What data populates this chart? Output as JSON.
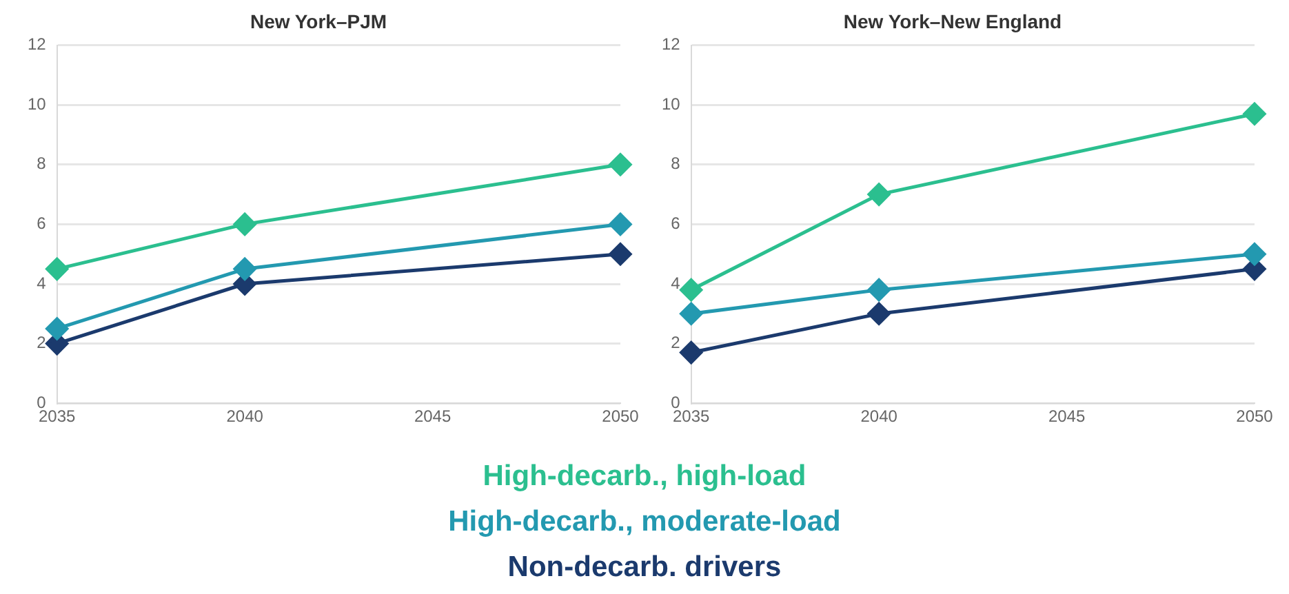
{
  "chart_data": [
    {
      "type": "line",
      "title": "New York–PJM",
      "x": [
        2035,
        2040,
        2050
      ],
      "xlim": [
        2035,
        2050
      ],
      "xticks": [
        2035,
        2040,
        2045,
        2050
      ],
      "ylim": [
        0,
        12
      ],
      "yticks": [
        0,
        2,
        4,
        6,
        8,
        10,
        12
      ],
      "grid": "y",
      "marker": "diamond",
      "legend": "bottom",
      "series": [
        {
          "name": "High-decarb., high-load",
          "color": "#2bbf8f",
          "values": [
            4.5,
            6,
            8
          ]
        },
        {
          "name": "High-decarb., moderate-load",
          "color": "#2399b0",
          "values": [
            2.5,
            4.5,
            6
          ]
        },
        {
          "name": "Non-decarb. drivers",
          "color": "#1b3a6d",
          "values": [
            2,
            4,
            5
          ]
        }
      ]
    },
    {
      "type": "line",
      "title": "New York–New England",
      "x": [
        2035,
        2040,
        2050
      ],
      "xlim": [
        2035,
        2050
      ],
      "xticks": [
        2035,
        2040,
        2045,
        2050
      ],
      "ylim": [
        0,
        12
      ],
      "yticks": [
        0,
        2,
        4,
        6,
        8,
        10,
        12
      ],
      "grid": "y",
      "marker": "diamond",
      "series": [
        {
          "color": "#2bbf8f",
          "values": [
            3.8,
            7,
            9.7
          ]
        },
        {
          "color": "#2399b0",
          "values": [
            3,
            3.8,
            5
          ]
        },
        {
          "color": "#1b3a6d",
          "values": [
            1.7,
            3,
            4.5
          ]
        }
      ]
    }
  ]
}
